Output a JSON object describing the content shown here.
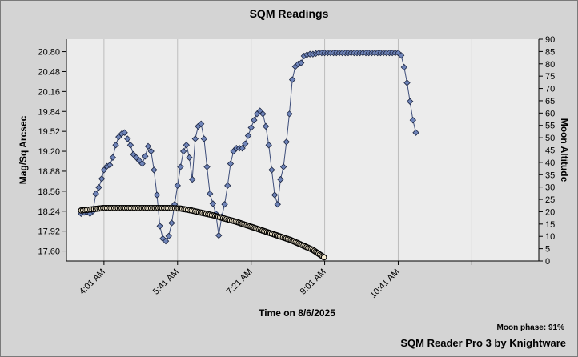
{
  "chart_data": {
    "type": "scatter",
    "title": "SQM Readings",
    "xlabel": "Time on 8/6/2025",
    "ylabel": "Mag/Sq Arcsec",
    "y2label": "Moon Altitude",
    "x_ticks": [
      "4:01 AM",
      "5:41 AM",
      "7:21 AM",
      "9:01 AM",
      "10:41 AM"
    ],
    "xlim": [
      "3:10 AM",
      "1:52 PM"
    ],
    "ylim": [
      17.44,
      21.0
    ],
    "y_ticks": [
      17.6,
      17.92,
      18.24,
      18.56,
      18.88,
      19.2,
      19.52,
      19.84,
      20.16,
      20.48,
      20.8
    ],
    "y2lim": [
      0,
      90
    ],
    "y2_ticks": [
      0,
      5,
      10,
      15,
      20,
      25,
      30,
      35,
      40,
      45,
      50,
      55,
      60,
      65,
      70,
      75,
      80,
      85,
      90
    ],
    "grid": true,
    "series": [
      {
        "marker": "diamond",
        "color": "#6f84b8",
        "axis": "left",
        "x": [
          "3:30 AM",
          "3:34 AM",
          "3:38 AM",
          "3:42 AM",
          "3:46 AM",
          "3:50 AM",
          "3:54 AM",
          "3:58 AM",
          "4:01 AM",
          "4:05 AM",
          "4:09 AM",
          "4:13 AM",
          "4:17 AM",
          "4:21 AM",
          "4:25 AM",
          "4:29 AM",
          "4:33 AM",
          "4:37 AM",
          "4:41 AM",
          "4:45 AM",
          "4:49 AM",
          "4:53 AM",
          "4:57 AM",
          "5:01 AM",
          "5:05 AM",
          "5:09 AM",
          "5:13 AM",
          "5:17 AM",
          "5:21 AM",
          "5:25 AM",
          "5:29 AM",
          "5:33 AM",
          "5:37 AM",
          "5:41 AM",
          "5:45 AM",
          "5:49 AM",
          "5:53 AM",
          "5:57 AM",
          "6:01 AM",
          "6:05 AM",
          "6:09 AM",
          "6:13 AM",
          "6:17 AM",
          "6:21 AM",
          "6:25 AM",
          "6:29 AM",
          "6:33 AM",
          "6:37 AM",
          "6:41 AM",
          "6:45 AM",
          "6:49 AM",
          "6:53 AM",
          "6:57 AM",
          "7:01 AM",
          "7:05 AM",
          "7:09 AM",
          "7:13 AM",
          "7:17 AM",
          "7:21 AM",
          "7:25 AM",
          "7:29 AM",
          "7:33 AM",
          "7:37 AM",
          "7:41 AM",
          "7:45 AM",
          "7:49 AM",
          "7:53 AM",
          "7:57 AM",
          "8:01 AM",
          "8:05 AM",
          "8:09 AM",
          "8:13 AM",
          "8:17 AM",
          "8:21 AM",
          "8:25 AM",
          "8:29 AM",
          "8:33 AM",
          "8:37 AM",
          "8:41 AM",
          "8:45 AM",
          "8:49 AM",
          "8:53 AM",
          "8:57 AM",
          "9:01 AM",
          "9:05 AM",
          "9:09 AM",
          "9:13 AM",
          "9:17 AM",
          "9:21 AM",
          "9:25 AM",
          "9:29 AM",
          "9:33 AM",
          "9:37 AM",
          "9:41 AM",
          "9:45 AM",
          "9:49 AM",
          "9:53 AM",
          "9:57 AM",
          "10:01 AM",
          "10:05 AM",
          "10:09 AM",
          "10:13 AM",
          "10:17 AM",
          "10:21 AM",
          "10:25 AM",
          "10:29 AM",
          "10:33 AM",
          "10:37 AM",
          "10:41 AM",
          "10:45 AM",
          "10:49 AM",
          "10:53 AM",
          "10:57 AM",
          "11:01 AM",
          "11:05 AM",
          "11:09 AM",
          "11:13 AM",
          "11:17 AM"
        ],
        "y": [
          18.2,
          18.22,
          18.23,
          18.2,
          18.24,
          18.52,
          18.62,
          18.76,
          18.9,
          18.96,
          18.98,
          19.1,
          19.3,
          19.43,
          19.48,
          19.5,
          19.4,
          19.3,
          19.15,
          19.1,
          19.05,
          19.0,
          19.12,
          19.28,
          19.2,
          18.9,
          18.5,
          18.0,
          17.8,
          17.76,
          17.84,
          18.05,
          18.35,
          18.65,
          18.95,
          19.2,
          19.3,
          19.1,
          18.75,
          19.4,
          19.6,
          19.64,
          19.4,
          18.95,
          18.52,
          18.36,
          18.2,
          17.85,
          18.15,
          18.35,
          18.65,
          19.0,
          19.2,
          19.25,
          19.25,
          19.25,
          19.32,
          19.45,
          19.58,
          19.7,
          19.8,
          19.85,
          19.8,
          19.6,
          19.3,
          18.9,
          18.5,
          18.35,
          18.75,
          18.95,
          19.35,
          19.8,
          20.35,
          20.56,
          20.6,
          20.62,
          20.73,
          20.75,
          20.76,
          20.76,
          20.77,
          20.78,
          20.78,
          20.78,
          20.78,
          20.78,
          20.78,
          20.78,
          20.78,
          20.78,
          20.78,
          20.78,
          20.78,
          20.78,
          20.78,
          20.78,
          20.78,
          20.78,
          20.78,
          20.78,
          20.78,
          20.78,
          20.78,
          20.78,
          20.78,
          20.78,
          20.78,
          20.78,
          20.78,
          20.74,
          20.55,
          20.3,
          20.0,
          19.7,
          19.5,
          null,
          null,
          null
        ]
      },
      {
        "marker": "circle",
        "color": "#f5ead0",
        "axis": "right",
        "x": [
          "3:30 AM",
          "3:45 AM",
          "4:00 AM",
          "4:15 AM",
          "4:30 AM",
          "4:45 AM",
          "5:00 AM",
          "5:15 AM",
          "5:30 AM",
          "5:45 AM",
          "6:00 AM",
          "6:15 AM",
          "6:30 AM",
          "6:45 AM",
          "7:00 AM",
          "7:15 AM",
          "7:30 AM",
          "7:45 AM",
          "8:00 AM",
          "8:15 AM",
          "8:30 AM",
          "8:45 AM",
          "9:00 AM"
        ],
        "y": [
          20.5,
          21,
          21.5,
          21.5,
          21.5,
          21.5,
          21.5,
          21.5,
          21.5,
          21.3,
          20.5,
          19.5,
          18.5,
          17.2,
          16,
          14.5,
          13,
          11.5,
          10,
          8.5,
          6.5,
          4.5,
          1.5
        ]
      }
    ]
  },
  "moon_phase_label": "Moon phase: 91%",
  "footer": "SQM Reader Pro 3 by Knightware"
}
